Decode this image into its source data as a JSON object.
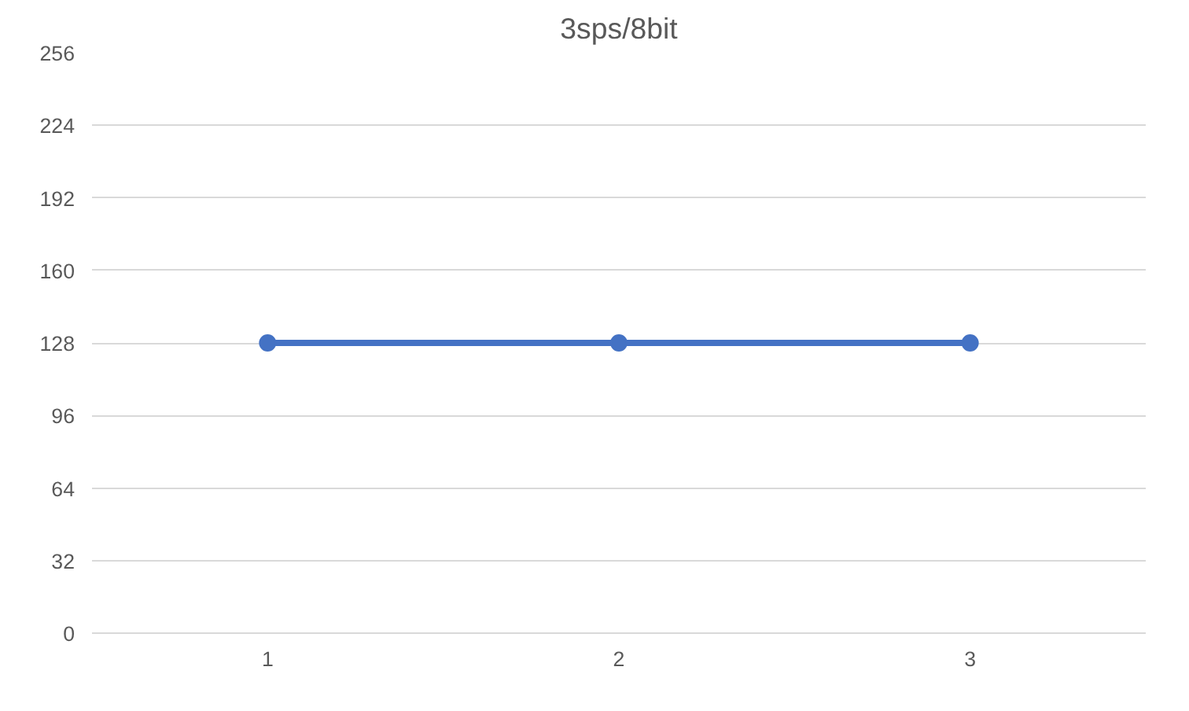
{
  "chart_data": {
    "type": "line",
    "title": "3sps/8bit",
    "categories": [
      "1",
      "2",
      "3"
    ],
    "series": [
      {
        "color": "#4472c4",
        "values": [
          128,
          128,
          128
        ]
      }
    ],
    "ylim": [
      0,
      256
    ],
    "yticks": [
      0,
      32,
      64,
      96,
      128,
      160,
      192,
      224,
      256
    ],
    "grid": "y",
    "marker": "circle",
    "line_style": "solid"
  }
}
